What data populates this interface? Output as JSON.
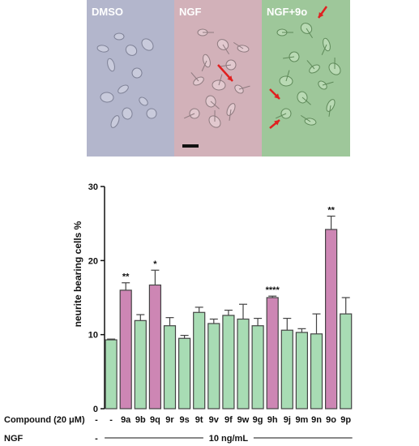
{
  "panels": [
    {
      "label": "DMSO",
      "color": "#b3b6cc"
    },
    {
      "label": "NGF",
      "color": "#d2b1b9"
    },
    {
      "label": "NGF+9o",
      "color": "#9ec79a"
    }
  ],
  "chart_data": {
    "type": "bar",
    "title": "",
    "xlabel": "",
    "ylabel": "neurite bearing cells %",
    "ylim": [
      0,
      30
    ],
    "yticks": [
      0,
      10,
      20,
      30
    ],
    "grid": false,
    "legend": "none",
    "categories": [
      "-",
      "-",
      "9a",
      "9b",
      "9q",
      "9r",
      "9s",
      "9t",
      "9v",
      "9f",
      "9w",
      "9g",
      "9h",
      "9j",
      "9m",
      "9n",
      "9o",
      "9p"
    ],
    "values": [
      null,
      9.3,
      16.0,
      11.9,
      16.7,
      11.2,
      9.5,
      13.0,
      11.5,
      12.6,
      12.1,
      11.2,
      15.0,
      10.6,
      10.3,
      10.1,
      24.2,
      12.8
    ],
    "errors": [
      null,
      0.1,
      1.0,
      0.8,
      2.0,
      1.1,
      0.4,
      0.7,
      0.6,
      0.7,
      2.0,
      1.0,
      0.2,
      1.6,
      0.5,
      2.7,
      1.8,
      2.2
    ],
    "highlight": [
      false,
      false,
      true,
      false,
      true,
      false,
      false,
      false,
      false,
      false,
      false,
      false,
      true,
      false,
      false,
      false,
      true,
      false
    ],
    "significance": [
      "",
      "",
      "**",
      "",
      "*",
      "",
      "",
      "",
      "",
      "",
      "",
      "",
      "****",
      "",
      "",
      "",
      "**",
      ""
    ],
    "row_labels": {
      "compound": "Compound (20 μM)",
      "ngf": "NGF",
      "ngf_value": "10 ng/mL"
    },
    "colors": {
      "normal": "#a8dcb4",
      "highlight": "#cd86b4",
      "edge": "#444444"
    }
  }
}
